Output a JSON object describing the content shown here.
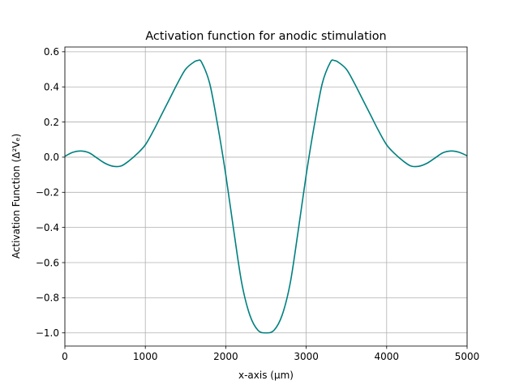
{
  "chart_data": {
    "type": "line",
    "title": "Activation function for anodic stimulation",
    "xlabel": "x-axis (μm)",
    "ylabel": "Activation Function (Δ²Vₑ)",
    "xlim": [
      0,
      5000
    ],
    "ylim": [
      -1.075,
      0.627
    ],
    "x_ticks": [
      0,
      1000,
      2000,
      3000,
      4000,
      5000
    ],
    "x_tick_labels": [
      "0",
      "1000",
      "2000",
      "3000",
      "4000",
      "5000"
    ],
    "y_ticks": [
      0.6,
      0.4,
      0.2,
      0.0,
      -0.2,
      -0.4,
      -0.6,
      -0.8,
      -1.0
    ],
    "y_tick_labels": [
      "0.6",
      "0.4",
      "0.2",
      "0.0",
      "−0.2",
      "−0.4",
      "−0.6",
      "−0.8",
      "−1.0"
    ],
    "grid": true,
    "legend": "none",
    "series": [
      {
        "color": "#008080",
        "x": [
          0,
          100,
          200,
          300,
          400,
          500,
          600,
          700,
          800,
          900,
          1000,
          1100,
          1200,
          1300,
          1400,
          1500,
          1600,
          1650,
          1700,
          1800,
          1900,
          2000,
          2100,
          2200,
          2300,
          2400,
          2500,
          2600,
          2700,
          2800,
          2900,
          3000,
          3100,
          3200,
          3300,
          3350,
          3400,
          3500,
          3600,
          3700,
          3800,
          3900,
          4000,
          4100,
          4200,
          4300,
          4400,
          4500,
          4600,
          4700,
          4800,
          4900,
          5000
        ],
        "y": [
          0.005,
          0.028,
          0.035,
          0.025,
          -0.005,
          -0.035,
          -0.052,
          -0.05,
          -0.02,
          0.02,
          0.07,
          0.15,
          0.24,
          0.33,
          0.42,
          0.5,
          0.54,
          0.55,
          0.54,
          0.42,
          0.18,
          -0.1,
          -0.42,
          -0.72,
          -0.9,
          -0.985,
          -1.0,
          -0.985,
          -0.9,
          -0.72,
          -0.42,
          -0.1,
          0.18,
          0.42,
          0.54,
          0.55,
          0.54,
          0.5,
          0.42,
          0.33,
          0.24,
          0.15,
          0.07,
          0.02,
          -0.02,
          -0.05,
          -0.052,
          -0.035,
          -0.005,
          0.025,
          0.035,
          0.028,
          0.008
        ]
      }
    ]
  }
}
